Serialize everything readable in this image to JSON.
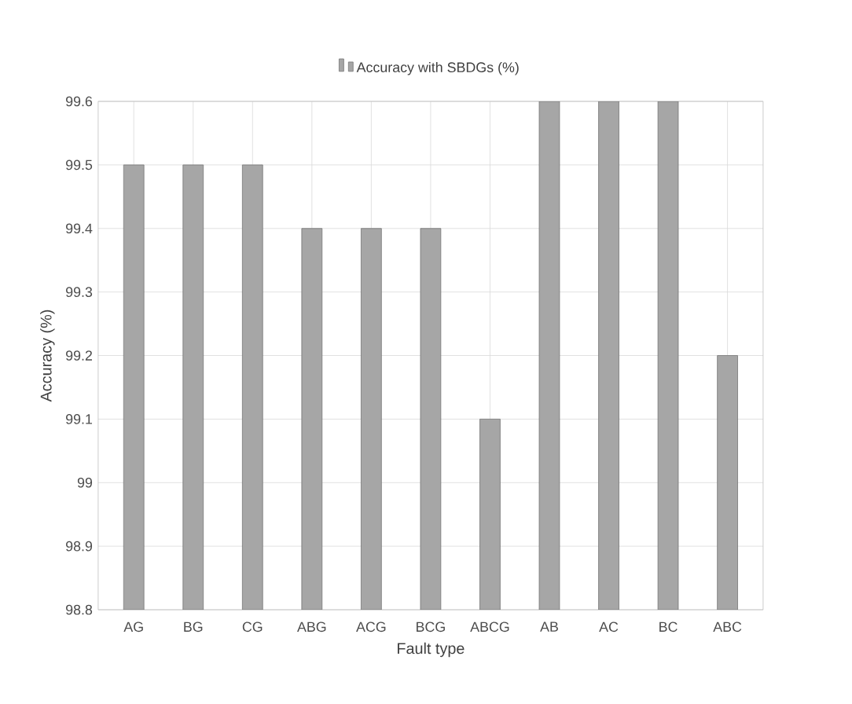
{
  "chart_data": {
    "type": "bar",
    "xlabel": "Fault type",
    "ylabel": "Accuracy (%)",
    "categories": [
      "AG",
      "BG",
      "CG",
      "ABG",
      "ACG",
      "BCG",
      "ABCG",
      "AB",
      "AC",
      "BC",
      "ABC"
    ],
    "series": [
      {
        "name": "Accuracy with SBDGs (%)",
        "color": "#a6a6a6",
        "values": [
          99.5,
          99.5,
          99.5,
          99.4,
          99.4,
          99.4,
          99.1,
          99.6,
          99.6,
          99.6,
          99.2
        ]
      }
    ],
    "ylim": [
      98.8,
      99.6
    ],
    "yticks": [
      98.8,
      98.9,
      99,
      99.1,
      99.2,
      99.3,
      99.4,
      99.5,
      99.6
    ],
    "grid": true,
    "legend": "top"
  }
}
